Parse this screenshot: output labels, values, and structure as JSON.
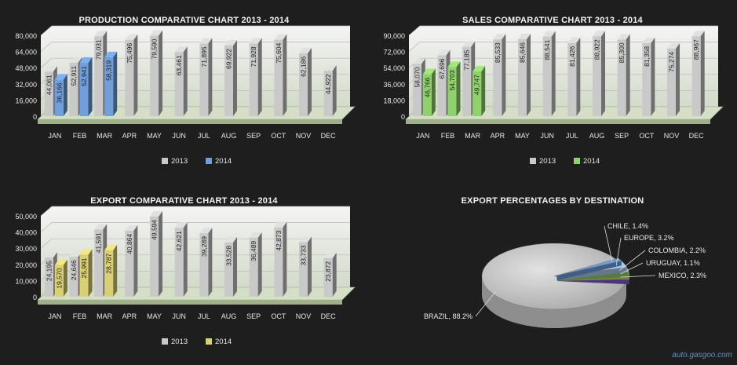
{
  "months": [
    "JAN",
    "FEB",
    "MAR",
    "APR",
    "MAY",
    "JUN",
    "JUL",
    "AUG",
    "SEP",
    "OCT",
    "NOV",
    "DEC"
  ],
  "watermark": "auto.gasgoo.com",
  "chart_data": [
    {
      "id": "production",
      "type": "bar",
      "title": "PRODUCTION COMPARATIVE CHART 2013 - 2014",
      "ylim": [
        0,
        80000
      ],
      "yticks": [
        0,
        16000,
        32000,
        48000,
        64000,
        80000
      ],
      "ytick_labels": [
        "0",
        "16,000",
        "32,000",
        "48,000",
        "64,000",
        "80,000"
      ],
      "legend_position": "bottom",
      "series": [
        {
          "name": "2013",
          "color": "#c9c9c9",
          "values": [
            44061,
            52911,
            79031,
            75496,
            79590,
            63461,
            71895,
            69922,
            71928,
            75604,
            62186,
            44922
          ],
          "labels": [
            "44,061",
            "52,911",
            "79,031",
            "75,496",
            "79,590",
            "63,461",
            "71,895",
            "69,922",
            "71,928",
            "75,604",
            "62,186",
            "44,922"
          ]
        },
        {
          "name": "2014",
          "color": "#6f9fdc",
          "values": [
            36166,
            52941,
            58319,
            null,
            null,
            null,
            null,
            null,
            null,
            null,
            null,
            null
          ],
          "labels": [
            "36,166",
            "52,941",
            "58,319"
          ]
        }
      ]
    },
    {
      "id": "sales",
      "type": "bar",
      "title": "SALES COMPARATIVE CHART 2013 - 2014",
      "ylim": [
        0,
        90000
      ],
      "yticks": [
        0,
        18000,
        36000,
        54000,
        72000,
        90000
      ],
      "ytick_labels": [
        "0",
        "18,000",
        "36,000",
        "54,000",
        "72,000",
        "90,000"
      ],
      "legend_position": "bottom",
      "series": [
        {
          "name": "2013",
          "color": "#c9c9c9",
          "values": [
            58070,
            67696,
            77185,
            85533,
            85646,
            88541,
            81426,
            88922,
            85300,
            81358,
            75274,
            88967
          ],
          "labels": [
            "58,070",
            "67,696",
            "77,185",
            "85,533",
            "85,646",
            "88,541",
            "81,426",
            "88,922",
            "85,300",
            "81,358",
            "75,274",
            "88,967"
          ]
        },
        {
          "name": "2014",
          "color": "#8fd16a",
          "values": [
            46766,
            54703,
            49747,
            null,
            null,
            null,
            null,
            null,
            null,
            null,
            null,
            null
          ],
          "labels": [
            "46,766",
            "54,703",
            "49,747"
          ]
        }
      ]
    },
    {
      "id": "export",
      "type": "bar",
      "title": "EXPORT COMPARATIVE CHART 2013 - 2014",
      "ylim": [
        0,
        50000
      ],
      "yticks": [
        0,
        10000,
        20000,
        30000,
        40000,
        50000
      ],
      "ytick_labels": [
        "0",
        "10,000",
        "20,000",
        "30,000",
        "40,000",
        "50,000"
      ],
      "legend_position": "bottom",
      "series": [
        {
          "name": "2013",
          "color": "#c9c9c9",
          "values": [
            24195,
            24646,
            41591,
            40864,
            49594,
            42621,
            39289,
            33528,
            36489,
            42873,
            33733,
            23872
          ],
          "labels": [
            "24,195",
            "24,646",
            "41,591",
            "40,864",
            "49,594",
            "42,621",
            "39,289",
            "33,528",
            "36,489",
            "42,873",
            "33,733",
            "23,872"
          ]
        },
        {
          "name": "2014",
          "color": "#d9cf73",
          "values": [
            19570,
            25991,
            28787,
            null,
            null,
            null,
            null,
            null,
            null,
            null,
            null,
            null
          ],
          "labels": [
            "19,570",
            "25,991",
            "28,787"
          ]
        }
      ]
    },
    {
      "id": "destinations",
      "type": "pie",
      "title": "EXPORT PERCENTAGES BY DESTINATION",
      "slices": [
        {
          "name": "BRAZIL",
          "value": 88.2,
          "label": "BRAZIL, 88.2%",
          "color": "#bdbdbd"
        },
        {
          "name": "CHILE",
          "value": 1.4,
          "label": "CHILE, 1.4%",
          "color": "#6d9fd8"
        },
        {
          "name": "EUROPE",
          "value": 3.2,
          "label": "EUROPE, 3.2%",
          "color": "#a7c7e8"
        },
        {
          "name": "COLOMBIA",
          "value": 2.2,
          "label": "COLOMBIA, 2.2%",
          "color": "#8fd16a"
        },
        {
          "name": "URUGUAY",
          "value": 1.1,
          "label": "URUGUAY, 1.1%",
          "color": "#d9cf73"
        },
        {
          "name": "MEXICO",
          "value": 2.3,
          "label": "MEXICO, 2.3%",
          "color": "#7b5cc9"
        }
      ]
    }
  ]
}
